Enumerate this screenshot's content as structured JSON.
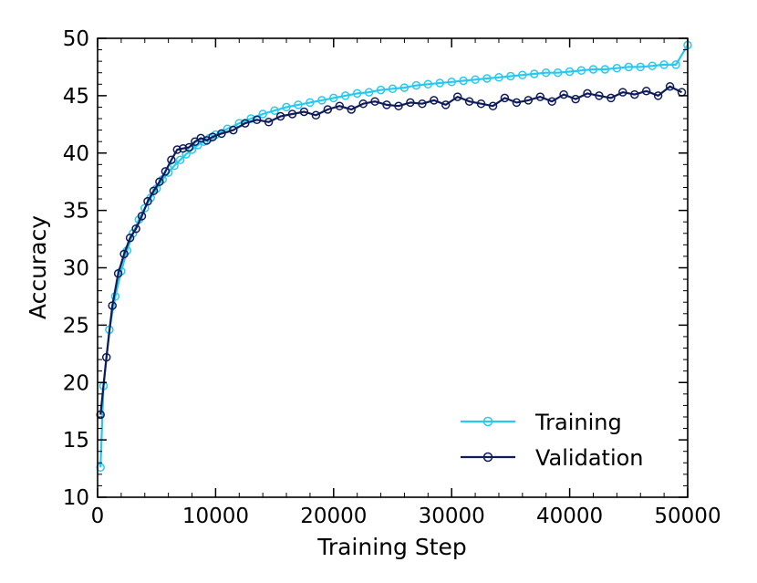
{
  "chart_data": {
    "type": "line",
    "title": "",
    "xlabel": "Training Step",
    "ylabel": "Accuracy",
    "xlim": [
      0,
      50000
    ],
    "ylim": [
      10,
      50
    ],
    "xticks": [
      0,
      10000,
      20000,
      30000,
      40000,
      50000
    ],
    "yticks": [
      10,
      15,
      20,
      25,
      30,
      35,
      40,
      45,
      50
    ],
    "xtick_labels": [
      "0",
      "10000",
      "20000",
      "30000",
      "40000",
      "50000"
    ],
    "ytick_labels": [
      "10",
      "15",
      "20",
      "25",
      "30",
      "35",
      "40",
      "45",
      "50"
    ],
    "grid": false,
    "legend_position": "lower-right",
    "marker": "open-circle",
    "series": [
      {
        "name": "Training",
        "color": "#29c8ee",
        "x": [
          250,
          500,
          1000,
          1500,
          2000,
          2500,
          3000,
          3500,
          4000,
          4500,
          5000,
          5500,
          6000,
          6500,
          7000,
          7500,
          8000,
          8500,
          9000,
          9500,
          10000,
          11000,
          12000,
          13000,
          14000,
          15000,
          16000,
          17000,
          18000,
          19000,
          20000,
          21000,
          22000,
          23000,
          24000,
          25000,
          26000,
          27000,
          28000,
          29000,
          30000,
          31000,
          32000,
          33000,
          34000,
          35000,
          36000,
          37000,
          38000,
          39000,
          40000,
          41000,
          42000,
          43000,
          44000,
          45000,
          46000,
          47000,
          48000,
          49000,
          50000
        ],
        "y": [
          12.6,
          19.7,
          24.6,
          27.5,
          29.7,
          31.5,
          33.0,
          34.2,
          35.2,
          36.1,
          36.9,
          37.7,
          38.3,
          38.9,
          39.4,
          39.9,
          40.3,
          40.7,
          41.0,
          41.3,
          41.6,
          42.1,
          42.6,
          43.0,
          43.4,
          43.7,
          44.0,
          44.2,
          44.4,
          44.6,
          44.8,
          45.0,
          45.2,
          45.3,
          45.5,
          45.6,
          45.7,
          45.9,
          46.0,
          46.1,
          46.2,
          46.3,
          46.4,
          46.5,
          46.6,
          46.7,
          46.8,
          46.9,
          47.0,
          47.0,
          47.1,
          47.2,
          47.3,
          47.3,
          47.4,
          47.5,
          47.5,
          47.6,
          47.7,
          47.7,
          49.4
        ]
      },
      {
        "name": "Validation",
        "color": "#101c5a",
        "x": [
          250,
          750,
          1250,
          1750,
          2250,
          2750,
          3250,
          3750,
          4250,
          4750,
          5250,
          5750,
          6250,
          6750,
          7250,
          7750,
          8250,
          8750,
          9250,
          9750,
          10500,
          11500,
          12500,
          13500,
          14500,
          15500,
          16500,
          17500,
          18500,
          19500,
          20500,
          21500,
          22500,
          23500,
          24500,
          25500,
          26500,
          27500,
          28500,
          29500,
          30500,
          31500,
          32500,
          33500,
          34500,
          35500,
          36500,
          37500,
          38500,
          39500,
          40500,
          41500,
          42500,
          43500,
          44500,
          45500,
          46500,
          47500,
          48500,
          49500
        ],
        "y": [
          17.2,
          22.2,
          26.7,
          29.5,
          31.2,
          32.6,
          33.4,
          34.5,
          35.8,
          36.7,
          37.5,
          38.4,
          39.4,
          40.3,
          40.4,
          40.5,
          41.0,
          41.3,
          41.1,
          41.4,
          41.7,
          42.0,
          42.6,
          42.9,
          42.7,
          43.2,
          43.4,
          43.6,
          43.3,
          43.8,
          44.1,
          43.8,
          44.3,
          44.5,
          44.2,
          44.1,
          44.4,
          44.3,
          44.6,
          44.2,
          44.9,
          44.5,
          44.3,
          44.1,
          44.8,
          44.4,
          44.6,
          44.9,
          44.5,
          45.1,
          44.7,
          45.2,
          45.0,
          44.8,
          45.3,
          45.1,
          45.4,
          45.0,
          45.8,
          45.3
        ]
      }
    ]
  }
}
